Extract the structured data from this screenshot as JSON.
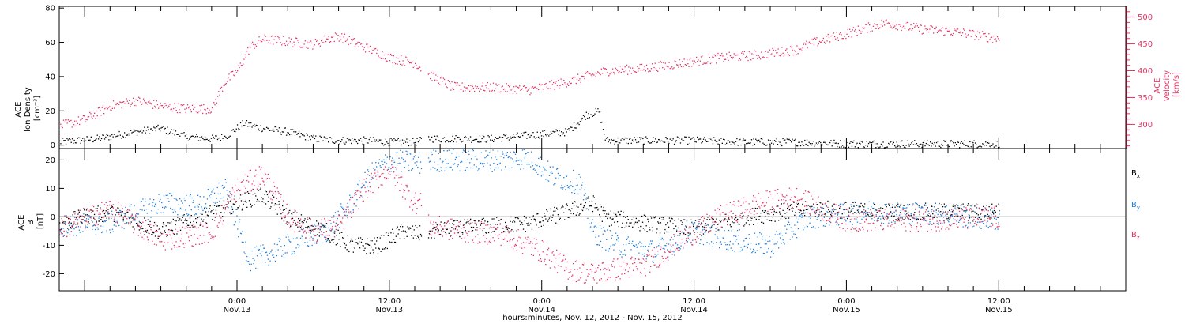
{
  "colors": {
    "black": "#000000",
    "velocity": "#e63462",
    "by": "#1f7fdc",
    "bz": "#e63462",
    "axis": "#000000"
  },
  "xlabel": "hours:minutes, Nov. 12, 2012 - Nov. 15, 2012",
  "x_range": [
    "2012-11-12 10:00",
    "2012-11-15 22:00"
  ],
  "x_ticks": [
    {
      "t": "2012-11-13 00:00",
      "time": "0:00",
      "date": "Nov.13"
    },
    {
      "t": "2012-11-13 12:00",
      "time": "12:00",
      "date": "Nov.13"
    },
    {
      "t": "2012-11-14 00:00",
      "time": "0:00",
      "date": "Nov.14"
    },
    {
      "t": "2012-11-14 12:00",
      "time": "12:00",
      "date": "Nov.14"
    },
    {
      "t": "2012-11-15 00:00",
      "time": "0:00",
      "date": "Nov.15"
    },
    {
      "t": "2012-11-15 12:00",
      "time": "12:00",
      "date": "Nov.15"
    }
  ],
  "chart_data": [
    {
      "type": "scatter",
      "panel": "top",
      "ylabel_left": [
        "ACE",
        "Ion Density",
        "[cm⁻³]"
      ],
      "ylabel_right": [
        "ACE",
        "Velocity",
        "[km/s]"
      ],
      "ylim_left": [
        -2,
        81
      ],
      "yticks_left": [
        0,
        20,
        40,
        60,
        80
      ],
      "ylim_right": [
        255,
        520
      ],
      "yticks_right": [
        300,
        350,
        400,
        450,
        500
      ],
      "series": [
        {
          "axis": "left",
          "color_key": "black",
          "x": [
            "2012-11-12 10:00",
            "2012-11-12 13:00",
            "2012-11-12 16:00",
            "2012-11-12 18:00",
            "2012-11-12 20:00",
            "2012-11-12 22:00",
            "2012-11-12 23:00",
            "2012-11-13 00:30",
            "2012-11-13 02:00",
            "2012-11-13 04:00",
            "2012-11-13 06:00",
            "2012-11-13 08:00",
            "2012-11-13 10:00",
            "2012-11-13 12:00",
            "2012-11-13 14:00",
            "2012-11-13 15:00",
            "2012-11-13 17:00",
            "2012-11-13 20:00",
            "2012-11-13 23:00",
            "2012-11-14 02:00",
            "2012-11-14 03:30",
            "2012-11-14 04:30",
            "2012-11-14 05:00",
            "2012-11-14 08:00",
            "2012-11-14 12:00",
            "2012-11-14 16:00",
            "2012-11-14 20:00",
            "2012-11-15 00:00",
            "2012-11-15 06:00",
            "2012-11-15 12:00"
          ],
          "y": [
            2,
            4,
            8,
            10,
            5,
            4,
            5,
            13,
            10,
            8,
            4,
            3,
            3,
            2,
            2,
            4,
            4,
            4,
            6,
            8,
            18,
            20,
            3,
            3,
            3,
            2,
            2,
            1,
            1,
            1
          ]
        },
        {
          "axis": "right",
          "color_key": "velocity",
          "x": [
            "2012-11-12 10:00",
            "2012-11-12 12:00",
            "2012-11-12 14:00",
            "2012-11-12 16:00",
            "2012-11-12 18:00",
            "2012-11-12 20:00",
            "2012-11-12 22:00",
            "2012-11-12 23:00",
            "2012-11-13 00:00",
            "2012-11-13 01:00",
            "2012-11-13 02:00",
            "2012-11-13 04:00",
            "2012-11-13 06:00",
            "2012-11-13 07:00",
            "2012-11-13 08:00",
            "2012-11-13 10:00",
            "2012-11-13 12:00",
            "2012-11-13 14:00",
            "2012-11-13 15:00",
            "2012-11-13 17:00",
            "2012-11-13 20:00",
            "2012-11-13 23:00",
            "2012-11-14 02:00",
            "2012-11-14 05:00",
            "2012-11-14 08:00",
            "2012-11-14 11:00",
            "2012-11-14 14:00",
            "2012-11-14 17:00",
            "2012-11-14 20:00",
            "2012-11-14 21:00",
            "2012-11-15 00:00",
            "2012-11-15 03:00",
            "2012-11-15 06:00",
            "2012-11-15 09:00",
            "2012-11-15 12:00"
          ],
          "y": [
            298,
            310,
            335,
            345,
            335,
            330,
            330,
            380,
            400,
            445,
            460,
            455,
            450,
            460,
            465,
            445,
            425,
            415,
            395,
            370,
            370,
            365,
            380,
            400,
            405,
            415,
            425,
            430,
            440,
            450,
            470,
            490,
            478,
            472,
            460
          ]
        }
      ]
    },
    {
      "type": "scatter",
      "panel": "bottom",
      "ylabel_left": [
        "ACE",
        "B",
        "[nT]"
      ],
      "ylim": [
        -26,
        24
      ],
      "yticks": [
        -20,
        -10,
        0,
        10,
        20
      ],
      "zero_line": true,
      "series": [
        {
          "name": "Bx",
          "label_main": "B",
          "label_sub": "x",
          "color_key": "black",
          "x": [
            "2012-11-12 10:00",
            "2012-11-12 14:00",
            "2012-11-12 18:00",
            "2012-11-12 21:00",
            "2012-11-13 00:00",
            "2012-11-13 02:00",
            "2012-11-13 04:00",
            "2012-11-13 07:00",
            "2012-11-13 09:00",
            "2012-11-13 11:00",
            "2012-11-13 13:00",
            "2012-11-13 14:30",
            "2012-11-13 15:00",
            "2012-11-13 17:00",
            "2012-11-13 20:00",
            "2012-11-13 23:00",
            "2012-11-14 02:00",
            "2012-11-14 04:00",
            "2012-11-14 05:00",
            "2012-11-14 08:00",
            "2012-11-14 12:00",
            "2012-11-14 16:00",
            "2012-11-14 19:00",
            "2012-11-14 22:00",
            "2012-11-15 02:00",
            "2012-11-15 08:00",
            "2012-11-15 12:00"
          ],
          "y": [
            -2,
            2,
            -5,
            0,
            5,
            8,
            0,
            -5,
            -10,
            -10,
            -5,
            -6,
            -5,
            -4,
            -3,
            -2,
            2,
            5,
            0,
            -2,
            -4,
            0,
            2,
            3,
            2,
            2,
            2
          ]
        },
        {
          "name": "By",
          "label_main": "B",
          "label_sub": "y",
          "color_key": "by",
          "x": [
            "2012-11-12 10:00",
            "2012-11-12 14:00",
            "2012-11-12 18:00",
            "2012-11-12 21:00",
            "2012-11-12 23:00",
            "2012-11-13 01:00",
            "2012-11-13 03:00",
            "2012-11-13 05:00",
            "2012-11-13 07:00",
            "2012-11-13 09:00",
            "2012-11-13 10:30",
            "2012-11-13 12:00",
            "2012-11-13 14:30",
            "2012-11-13 15:00",
            "2012-11-13 20:00",
            "2012-11-13 23:00",
            "2012-11-14 01:00",
            "2012-11-14 03:00",
            "2012-11-14 04:00",
            "2012-11-14 06:00",
            "2012-11-14 09:00",
            "2012-11-14 12:00",
            "2012-11-14 15:00",
            "2012-11-14 18:00",
            "2012-11-14 21:00",
            "2012-11-15 02:00",
            "2012-11-15 08:00",
            "2012-11-15 12:00"
          ],
          "y": [
            -3,
            -2,
            5,
            4,
            10,
            -15,
            -12,
            -8,
            -5,
            5,
            15,
            20,
            19,
            20,
            20,
            21,
            14,
            12,
            -5,
            -10,
            -12,
            -5,
            -8,
            -10,
            0,
            2,
            1,
            -1
          ]
        },
        {
          "name": "Bz",
          "label_main": "B",
          "label_sub": "z",
          "color_key": "bz",
          "x": [
            "2012-11-12 10:00",
            "2012-11-12 14:00",
            "2012-11-12 18:00",
            "2012-11-12 22:00",
            "2012-11-13 00:00",
            "2012-11-13 02:00",
            "2012-11-13 04:00",
            "2012-11-13 06:00",
            "2012-11-13 08:00",
            "2012-11-13 10:00",
            "2012-11-13 12:00",
            "2012-11-13 14:00",
            "2012-11-13 14:30",
            "2012-11-13 15:00",
            "2012-11-13 18:00",
            "2012-11-13 21:00",
            "2012-11-14 00:00",
            "2012-11-14 02:00",
            "2012-11-14 04:00",
            "2012-11-14 06:00",
            "2012-11-14 08:00",
            "2012-11-14 11:00",
            "2012-11-14 14:00",
            "2012-11-14 17:00",
            "2012-11-14 20:00",
            "2012-11-15 00:00",
            "2012-11-15 06:00",
            "2012-11-15 12:00"
          ],
          "y": [
            -4,
            3,
            -8,
            -5,
            10,
            15,
            0,
            -5,
            -3,
            10,
            17,
            5,
            6,
            -3,
            -5,
            -6,
            -12,
            -18,
            -20,
            -18,
            -17,
            -8,
            0,
            5,
            7,
            -1,
            -1,
            0
          ]
        }
      ]
    }
  ]
}
